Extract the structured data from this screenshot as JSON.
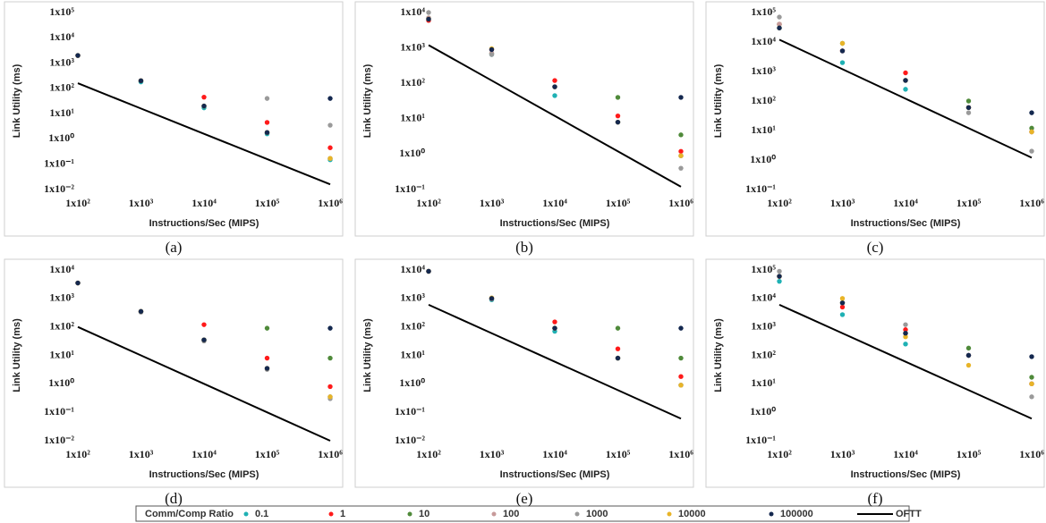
{
  "legend": {
    "title": "Comm/Comp Ratio",
    "entries": [
      {
        "name": "0.1",
        "color": "#1fb1b4"
      },
      {
        "name": "1",
        "color": "#ff1a1a"
      },
      {
        "name": "10",
        "color": "#4f8a3a"
      },
      {
        "name": "100",
        "color": "#c79a9a"
      },
      {
        "name": "1000",
        "color": "#9a9a9a"
      },
      {
        "name": "10000",
        "color": "#e8b428"
      },
      {
        "name": "100000",
        "color": "#14284f"
      },
      {
        "name": "OFTT",
        "color": "#000000"
      }
    ]
  },
  "chart_data": [
    {
      "type": "scatter",
      "panel_label": "(a)",
      "xlabel": "Instructions/Sec (MIPS)",
      "ylabel": "Link Utility (ms)",
      "log_x": true,
      "log_y": true,
      "x": [
        100,
        1000,
        10000,
        100000,
        1000000
      ],
      "xlim": [
        100,
        1000000
      ],
      "xticks": [
        {
          "value": 100,
          "label": "1x10²"
        },
        {
          "value": 1000,
          "label": "1x10³"
        },
        {
          "value": 10000,
          "label": "1x10⁴"
        },
        {
          "value": 100000,
          "label": "1x10⁵"
        },
        {
          "value": 1000000,
          "label": "1x10⁶"
        }
      ],
      "ylim": [
        0.01,
        100000
      ],
      "yticks": [
        {
          "value": 0.01,
          "label": "1x10⁻²"
        },
        {
          "value": 0.1,
          "label": "1x10⁻¹"
        },
        {
          "value": 1,
          "label": "1x10⁰"
        },
        {
          "value": 10,
          "label": "1x10¹"
        },
        {
          "value": 100,
          "label": "1x10²"
        },
        {
          "value": 1000,
          "label": "1x10³"
        },
        {
          "value": 10000,
          "label": "1x10⁴"
        },
        {
          "value": 100000,
          "label": "1x10⁵"
        }
      ],
      "series": [
        {
          "values": [
            2000,
            180,
            17,
            1.6,
            0.15
          ]
        },
        {
          "values": [
            2000,
            200,
            45,
            4.5,
            0.45
          ]
        },
        {
          "values": [
            2000,
            200,
            20,
            1.8,
            0.17
          ]
        },
        {
          "values": [
            2000,
            200,
            20,
            1.8,
            0.17
          ]
        },
        {
          "values": [
            2000,
            200,
            20,
            40,
            3.5
          ]
        },
        {
          "values": [
            2000,
            200,
            20,
            1.8,
            0.17
          ]
        },
        {
          "values": [
            2000,
            200,
            20,
            1.8,
            40
          ]
        }
      ],
      "line": {
        "values": [
          160,
          16,
          1.6,
          0.16,
          0.016
        ]
      }
    },
    {
      "type": "scatter",
      "panel_label": "(b)",
      "xlabel": "Instructions/Sec (MIPS)",
      "ylabel": "Link Utility (ms)",
      "log_x": true,
      "log_y": true,
      "x": [
        100,
        1000,
        10000,
        100000,
        1000000
      ],
      "xlim": [
        100,
        1000000
      ],
      "xticks": [
        {
          "value": 100,
          "label": "1x10²"
        },
        {
          "value": 1000,
          "label": "1x10³"
        },
        {
          "value": 10000,
          "label": "1x10⁴"
        },
        {
          "value": 100000,
          "label": "1x10⁵"
        },
        {
          "value": 1000000,
          "label": "1x10⁶"
        }
      ],
      "ylim": [
        0.1,
        10000
      ],
      "yticks": [
        {
          "value": 0.1,
          "label": "1x10⁻¹"
        },
        {
          "value": 1,
          "label": "1x10⁰"
        },
        {
          "value": 10,
          "label": "1x10¹"
        },
        {
          "value": 100,
          "label": "1x10²"
        },
        {
          "value": 1000,
          "label": "1x10³"
        },
        {
          "value": 10000,
          "label": "1x10⁴"
        }
      ],
      "series": [
        {
          "values": [
            6000,
            650,
            45,
            8,
            0.9
          ]
        },
        {
          "values": [
            6000,
            900,
            120,
            12,
            1.2
          ]
        },
        {
          "values": [
            7000,
            700,
            80,
            40,
            3.5
          ]
        },
        {
          "values": [
            7000,
            700,
            80,
            8,
            0.9
          ]
        },
        {
          "values": [
            10000,
            650,
            80,
            8,
            0.4
          ]
        },
        {
          "values": [
            6500,
            950,
            80,
            8,
            0.9
          ]
        },
        {
          "values": [
            6500,
            900,
            80,
            8,
            40
          ]
        }
      ],
      "line": {
        "values": [
          1200,
          120,
          12,
          1.2,
          0.12
        ]
      }
    },
    {
      "type": "scatter",
      "panel_label": "(c)",
      "xlabel": "Instructions/Sec (MIPS)",
      "ylabel": "Link Utility (ms)",
      "log_x": true,
      "log_y": true,
      "x": [
        100,
        1000,
        10000,
        100000,
        1000000
      ],
      "xlim": [
        100,
        1000000
      ],
      "xticks": [
        {
          "value": 100,
          "label": "1x10²"
        },
        {
          "value": 1000,
          "label": "1x10³"
        },
        {
          "value": 10000,
          "label": "1x10⁴"
        },
        {
          "value": 100000,
          "label": "1x10⁵"
        },
        {
          "value": 1000000,
          "label": "1x10⁶"
        }
      ],
      "ylim": [
        0.1,
        100000
      ],
      "yticks": [
        {
          "value": 0.1,
          "label": "1x10⁻¹"
        },
        {
          "value": 1,
          "label": "1x10⁰"
        },
        {
          "value": 10,
          "label": "1x10¹"
        },
        {
          "value": 100,
          "label": "1x10²"
        },
        {
          "value": 1000,
          "label": "1x10³"
        },
        {
          "value": 10000,
          "label": "1x10⁴"
        },
        {
          "value": 100000,
          "label": "1x10⁵"
        }
      ],
      "series": [
        {
          "values": [
            30000,
            2000,
            250,
            60,
            9
          ]
        },
        {
          "values": [
            40000,
            5000,
            900,
            60,
            9
          ]
        },
        {
          "values": [
            40000,
            9000,
            500,
            100,
            12
          ]
        },
        {
          "values": [
            40000,
            5000,
            500,
            60,
            9
          ]
        },
        {
          "values": [
            70000,
            5000,
            500,
            40,
            2
          ]
        },
        {
          "values": [
            30000,
            9000,
            500,
            60,
            9
          ]
        },
        {
          "values": [
            30000,
            5000,
            500,
            60,
            40
          ]
        }
      ],
      "line": {
        "values": [
          12000,
          1200,
          120,
          12,
          1.2
        ]
      }
    },
    {
      "type": "scatter",
      "panel_label": "(d)",
      "xlabel": "Instructions/Sec (MIPS)",
      "ylabel": "Link Utility (ms)",
      "log_x": true,
      "log_y": true,
      "x": [
        100,
        1000,
        10000,
        100000,
        1000000
      ],
      "xlim": [
        100,
        1000000
      ],
      "xticks": [
        {
          "value": 100,
          "label": "1x10²"
        },
        {
          "value": 1000,
          "label": "1x10³"
        },
        {
          "value": 10000,
          "label": "1x10⁴"
        },
        {
          "value": 100000,
          "label": "1x10⁵"
        },
        {
          "value": 1000000,
          "label": "1x10⁶"
        }
      ],
      "ylim": [
        0.01,
        10000
      ],
      "yticks": [
        {
          "value": 0.01,
          "label": "1x10⁻²"
        },
        {
          "value": 0.1,
          "label": "1x10⁻¹"
        },
        {
          "value": 1,
          "label": "1x10⁰"
        },
        {
          "value": 10,
          "label": "1x10¹"
        },
        {
          "value": 100,
          "label": "1x10²"
        },
        {
          "value": 1000,
          "label": "1x10³"
        },
        {
          "value": 10000,
          "label": "1x10⁴"
        }
      ],
      "series": [
        {
          "values": [
            3500,
            350,
            35,
            3.5,
            0.35
          ]
        },
        {
          "values": [
            3500,
            350,
            120,
            8,
            0.8
          ]
        },
        {
          "values": [
            3500,
            350,
            35,
            90,
            8
          ]
        },
        {
          "values": [
            3500,
            350,
            35,
            3.5,
            0.35
          ]
        },
        {
          "values": [
            3500,
            330,
            32,
            3.2,
            0.3
          ]
        },
        {
          "values": [
            3500,
            350,
            35,
            3.5,
            0.35
          ]
        },
        {
          "values": [
            3500,
            350,
            35,
            3.5,
            90
          ]
        }
      ],
      "line": {
        "values": [
          100,
          10,
          1,
          0.1,
          0.01
        ]
      }
    },
    {
      "type": "scatter",
      "panel_label": "(e)",
      "xlabel": "Instructions/Sec (MIPS)",
      "ylabel": "Link Utility (ms)",
      "log_x": true,
      "log_y": true,
      "x": [
        100,
        1000,
        10000,
        100000,
        1000000
      ],
      "xlim": [
        100,
        1000000
      ],
      "xticks": [
        {
          "value": 100,
          "label": "1x10²"
        },
        {
          "value": 1000,
          "label": "1x10³"
        },
        {
          "value": 10000,
          "label": "1x10⁴"
        },
        {
          "value": 100000,
          "label": "1x10⁵"
        },
        {
          "value": 1000000,
          "label": "1x10⁶"
        }
      ],
      "ylim": [
        0.01,
        10000
      ],
      "yticks": [
        {
          "value": 0.01,
          "label": "1x10⁻²"
        },
        {
          "value": 0.1,
          "label": "1x10⁻¹"
        },
        {
          "value": 1,
          "label": "1x10⁰"
        },
        {
          "value": 10,
          "label": "1x10¹"
        },
        {
          "value": 100,
          "label": "1x10²"
        },
        {
          "value": 1000,
          "label": "1x10³"
        },
        {
          "value": 10000,
          "label": "1x10⁴"
        }
      ],
      "series": [
        {
          "values": [
            9000,
            900,
            70,
            8,
            0.9
          ]
        },
        {
          "values": [
            9000,
            1000,
            150,
            17,
            1.8
          ]
        },
        {
          "values": [
            9000,
            1000,
            90,
            90,
            8
          ]
        },
        {
          "values": [
            9000,
            1000,
            90,
            8,
            0.9
          ]
        },
        {
          "values": [
            9000,
            950,
            90,
            8,
            0.9
          ]
        },
        {
          "values": [
            9000,
            1050,
            90,
            8,
            0.9
          ]
        },
        {
          "values": [
            9000,
            1000,
            90,
            8,
            90
          ]
        }
      ],
      "line": {
        "values": [
          600,
          60,
          6,
          0.6,
          0.06
        ]
      }
    },
    {
      "type": "scatter",
      "panel_label": "(f)",
      "xlabel": "Instructions/Sec (MIPS)",
      "ylabel": "Link Utility (ms)",
      "log_x": true,
      "log_y": true,
      "x": [
        100,
        1000,
        10000,
        100000,
        1000000
      ],
      "xlim": [
        100,
        1000000
      ],
      "xticks": [
        {
          "value": 100,
          "label": "1x10²"
        },
        {
          "value": 1000,
          "label": "1x10³"
        },
        {
          "value": 10000,
          "label": "1x10⁴"
        },
        {
          "value": 100000,
          "label": "1x10⁵"
        },
        {
          "value": 1000000,
          "label": "1x10⁶"
        }
      ],
      "ylim": [
        0.1,
        100000
      ],
      "yticks": [
        {
          "value": 0.1,
          "label": "1x10⁻¹"
        },
        {
          "value": 1,
          "label": "1x10⁰"
        },
        {
          "value": 10,
          "label": "1x10¹"
        },
        {
          "value": 100,
          "label": "1x10²"
        },
        {
          "value": 1000,
          "label": "1x10³"
        },
        {
          "value": 10000,
          "label": "1x10⁴"
        },
        {
          "value": 100000,
          "label": "1x10⁵"
        }
      ],
      "series": [
        {
          "values": [
            40000,
            2700,
            250,
            100,
            10
          ]
        },
        {
          "values": [
            60000,
            5000,
            800,
            100,
            10
          ]
        },
        {
          "values": [
            60000,
            7000,
            600,
            180,
            17
          ]
        },
        {
          "values": [
            60000,
            7000,
            600,
            100,
            10
          ]
        },
        {
          "values": [
            90000,
            7000,
            1200,
            100,
            3.5
          ]
        },
        {
          "values": [
            60000,
            10000,
            450,
            45,
            10
          ]
        },
        {
          "values": [
            60000,
            7000,
            600,
            100,
            90
          ]
        }
      ],
      "line": {
        "values": [
          6000,
          600,
          60,
          6,
          0.6
        ]
      }
    }
  ]
}
